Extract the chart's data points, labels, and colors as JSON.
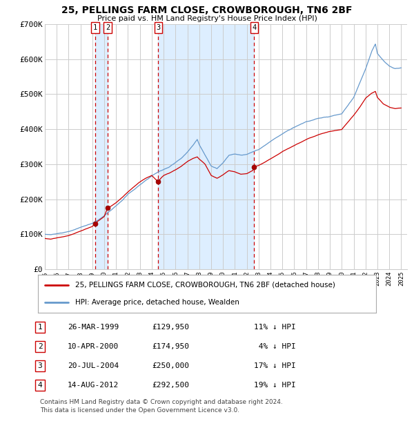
{
  "title": "25, PELLINGS FARM CLOSE, CROWBOROUGH, TN6 2BF",
  "subtitle": "Price paid vs. HM Land Registry's House Price Index (HPI)",
  "ylabel_ticks": [
    "£0",
    "£100K",
    "£200K",
    "£300K",
    "£400K",
    "£500K",
    "£600K",
    "£700K"
  ],
  "ytick_values": [
    0,
    100000,
    200000,
    300000,
    400000,
    500000,
    600000,
    700000
  ],
  "ylim": [
    0,
    700000
  ],
  "xlim_start": 1995.0,
  "xlim_end": 2025.5,
  "xtick_years": [
    1995,
    1996,
    1997,
    1998,
    1999,
    2000,
    2001,
    2002,
    2003,
    2004,
    2005,
    2006,
    2007,
    2008,
    2009,
    2010,
    2011,
    2012,
    2013,
    2014,
    2015,
    2016,
    2017,
    2018,
    2019,
    2020,
    2021,
    2022,
    2023,
    2024,
    2025
  ],
  "purchases": [
    {
      "num": 1,
      "date_decimal": 1999.23,
      "price": 129950
    },
    {
      "num": 2,
      "date_decimal": 2000.28,
      "price": 174950
    },
    {
      "num": 3,
      "date_decimal": 2004.55,
      "price": 250000
    },
    {
      "num": 4,
      "date_decimal": 2012.62,
      "price": 292500
    }
  ],
  "vspan_ranges": [
    [
      1999.23,
      2000.28
    ],
    [
      2004.55,
      2012.62
    ]
  ],
  "red_dashed_lines": [
    1999.23,
    2000.28,
    2004.55,
    2012.62
  ],
  "red_color": "#cc0000",
  "blue_color": "#6699cc",
  "vspan_color": "#ddeeff",
  "grid_color": "#cccccc",
  "background_color": "#ffffff",
  "legend_line1": "25, PELLINGS FARM CLOSE, CROWBOROUGH, TN6 2BF (detached house)",
  "legend_line2": "HPI: Average price, detached house, Wealden",
  "footer": "Contains HM Land Registry data © Crown copyright and database right 2024.\nThis data is licensed under the Open Government Licence v3.0.",
  "table_rows": [
    [
      "1",
      "26-MAR-1999",
      "£129,950",
      "11% ↓ HPI"
    ],
    [
      "2",
      "10-APR-2000",
      "£174,950",
      " 4% ↓ HPI"
    ],
    [
      "3",
      "20-JUL-2004",
      "£250,000",
      "17% ↓ HPI"
    ],
    [
      "4",
      "14-AUG-2012",
      "£292,500",
      "19% ↓ HPI"
    ]
  ],
  "hpi_anchors": [
    [
      1995.0,
      100000
    ],
    [
      1995.5,
      98000
    ],
    [
      1996.0,
      101000
    ],
    [
      1996.5,
      103000
    ],
    [
      1997.0,
      107000
    ],
    [
      1997.5,
      112000
    ],
    [
      1998.0,
      118000
    ],
    [
      1998.5,
      124000
    ],
    [
      1999.0,
      130000
    ],
    [
      1999.5,
      140000
    ],
    [
      2000.0,
      152000
    ],
    [
      2000.5,
      165000
    ],
    [
      2001.0,
      180000
    ],
    [
      2001.5,
      195000
    ],
    [
      2002.0,
      215000
    ],
    [
      2002.5,
      228000
    ],
    [
      2003.0,
      242000
    ],
    [
      2003.5,
      255000
    ],
    [
      2004.0,
      268000
    ],
    [
      2004.5,
      278000
    ],
    [
      2005.0,
      285000
    ],
    [
      2005.5,
      292000
    ],
    [
      2006.0,
      305000
    ],
    [
      2006.5,
      318000
    ],
    [
      2007.0,
      335000
    ],
    [
      2007.5,
      355000
    ],
    [
      2007.83,
      370000
    ],
    [
      2008.0,
      355000
    ],
    [
      2008.5,
      325000
    ],
    [
      2009.0,
      295000
    ],
    [
      2009.5,
      288000
    ],
    [
      2010.0,
      305000
    ],
    [
      2010.5,
      328000
    ],
    [
      2011.0,
      332000
    ],
    [
      2011.5,
      328000
    ],
    [
      2012.0,
      330000
    ],
    [
      2012.5,
      338000
    ],
    [
      2013.0,
      345000
    ],
    [
      2014.0,
      368000
    ],
    [
      2015.0,
      390000
    ],
    [
      2016.0,
      408000
    ],
    [
      2017.0,
      425000
    ],
    [
      2018.0,
      435000
    ],
    [
      2019.0,
      440000
    ],
    [
      2020.0,
      448000
    ],
    [
      2021.0,
      495000
    ],
    [
      2021.5,
      535000
    ],
    [
      2022.0,
      575000
    ],
    [
      2022.5,
      625000
    ],
    [
      2022.83,
      648000
    ],
    [
      2023.0,
      620000
    ],
    [
      2023.5,
      600000
    ],
    [
      2024.0,
      585000
    ],
    [
      2024.5,
      578000
    ],
    [
      2025.0,
      580000
    ]
  ],
  "red_anchors": [
    [
      1995.0,
      88000
    ],
    [
      1995.5,
      86000
    ],
    [
      1996.0,
      90000
    ],
    [
      1996.5,
      92000
    ],
    [
      1997.0,
      96000
    ],
    [
      1997.5,
      102000
    ],
    [
      1998.0,
      108000
    ],
    [
      1998.5,
      115000
    ],
    [
      1999.0,
      122000
    ],
    [
      1999.23,
      129950
    ],
    [
      1999.5,
      138000
    ],
    [
      2000.0,
      150000
    ],
    [
      2000.28,
      174950
    ],
    [
      2000.5,
      178000
    ],
    [
      2001.0,
      190000
    ],
    [
      2001.5,
      205000
    ],
    [
      2002.0,
      222000
    ],
    [
      2002.5,
      236000
    ],
    [
      2003.0,
      250000
    ],
    [
      2003.5,
      260000
    ],
    [
      2004.0,
      268000
    ],
    [
      2004.55,
      250000
    ],
    [
      2004.7,
      258000
    ],
    [
      2005.0,
      268000
    ],
    [
      2005.5,
      275000
    ],
    [
      2006.0,
      284000
    ],
    [
      2006.5,
      295000
    ],
    [
      2007.0,
      308000
    ],
    [
      2007.5,
      318000
    ],
    [
      2007.83,
      322000
    ],
    [
      2008.0,
      315000
    ],
    [
      2008.5,
      300000
    ],
    [
      2009.0,
      268000
    ],
    [
      2009.5,
      260000
    ],
    [
      2010.0,
      270000
    ],
    [
      2010.5,
      282000
    ],
    [
      2011.0,
      278000
    ],
    [
      2011.5,
      272000
    ],
    [
      2012.0,
      274000
    ],
    [
      2012.5,
      282000
    ],
    [
      2012.62,
      292500
    ],
    [
      2013.0,
      296000
    ],
    [
      2014.0,
      315000
    ],
    [
      2015.0,
      335000
    ],
    [
      2016.0,
      352000
    ],
    [
      2017.0,
      368000
    ],
    [
      2018.0,
      382000
    ],
    [
      2019.0,
      392000
    ],
    [
      2020.0,
      398000
    ],
    [
      2021.0,
      438000
    ],
    [
      2021.5,
      462000
    ],
    [
      2022.0,
      488000
    ],
    [
      2022.5,
      502000
    ],
    [
      2022.83,
      508000
    ],
    [
      2023.0,
      490000
    ],
    [
      2023.5,
      472000
    ],
    [
      2024.0,
      462000
    ],
    [
      2024.5,
      458000
    ],
    [
      2025.0,
      460000
    ]
  ]
}
